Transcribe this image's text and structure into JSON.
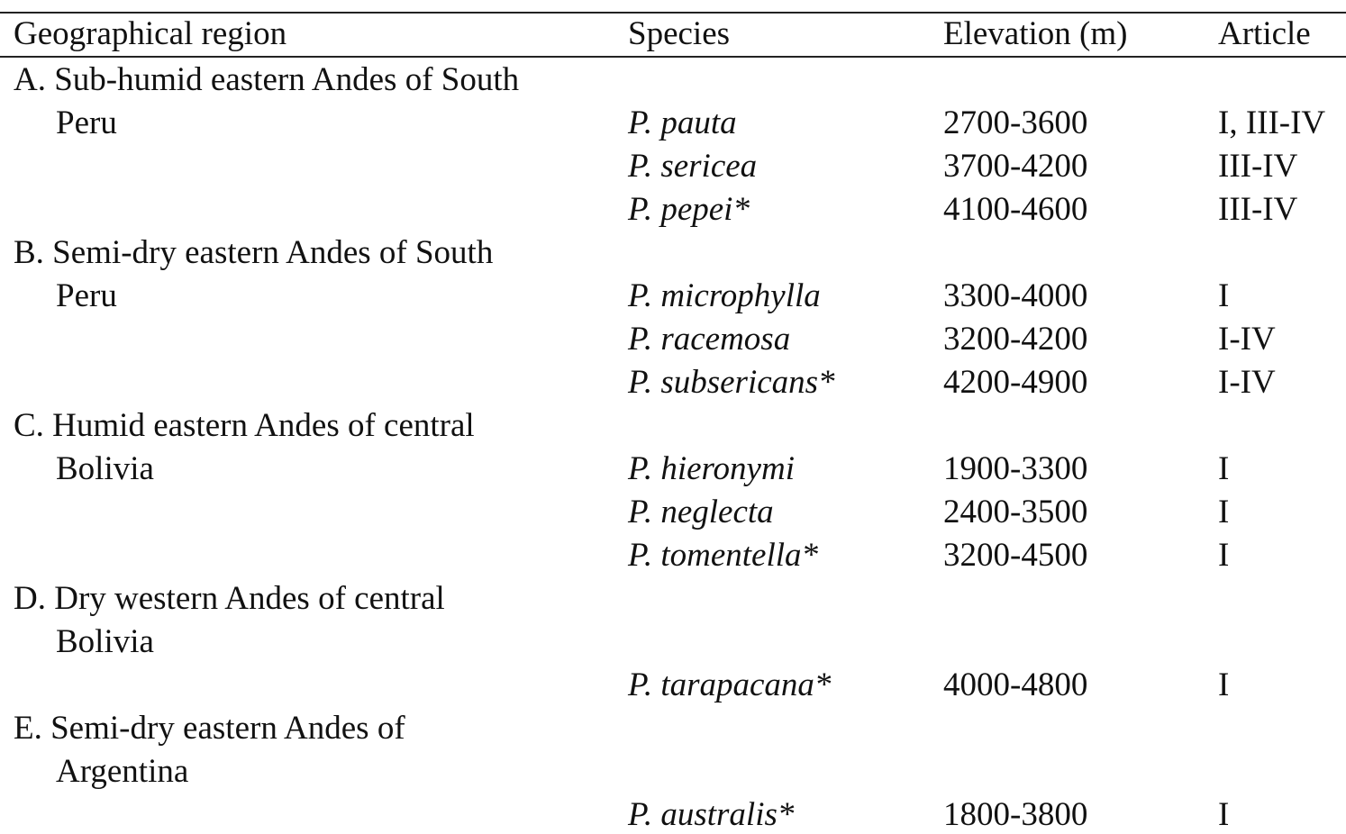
{
  "table": {
    "header": [
      "Geographical region",
      "Species",
      "Elevation (m)",
      "Article"
    ],
    "regions": [
      {
        "label_lines": [
          "A. Sub-humid eastern Andes of South",
          "Peru"
        ],
        "rows": [
          [
            "P. pauta",
            "2700-3600",
            "I, III-IV"
          ],
          [
            "P. sericea",
            "3700-4200",
            "III-IV"
          ],
          [
            "P. pepei*",
            "4100-4600",
            "III-IV"
          ]
        ]
      },
      {
        "label_lines": [
          "B. Semi-dry eastern Andes of South",
          "Peru"
        ],
        "rows": [
          [
            "P. microphylla",
            "3300-4000",
            "I"
          ],
          [
            "P. racemosa",
            "3200-4200",
            "I-IV"
          ],
          [
            "P. subsericans*",
            "4200-4900",
            "I-IV"
          ]
        ]
      },
      {
        "label_lines": [
          "C. Humid eastern Andes of central",
          "Bolivia"
        ],
        "rows": [
          [
            "P. hieronymi",
            "1900-3300",
            "I"
          ],
          [
            "P. neglecta",
            "2400-3500",
            "I"
          ],
          [
            "P. tomentella*",
            "3200-4500",
            "I"
          ]
        ]
      },
      {
        "label_lines": [
          "D. Dry western Andes of central",
          "Bolivia"
        ],
        "rows": [
          [
            "P. tarapacana*",
            "4000-4800",
            "I"
          ]
        ]
      },
      {
        "label_lines": [
          "E. Semi-dry eastern Andes of",
          "Argentina"
        ],
        "rows": [
          [
            "P. australis*",
            "1800-3800",
            "I"
          ]
        ]
      }
    ]
  }
}
